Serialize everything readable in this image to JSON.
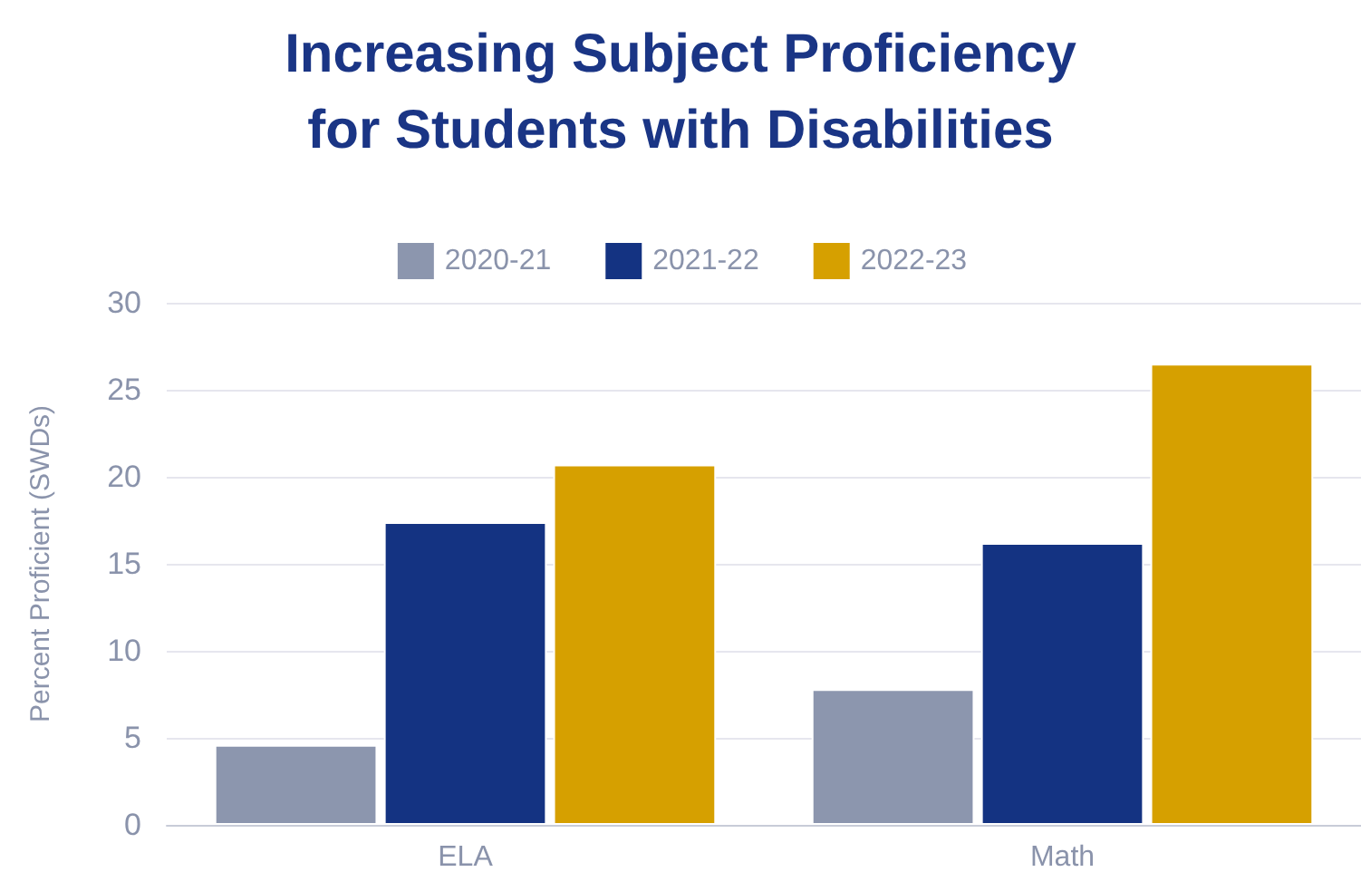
{
  "chart_data": {
    "type": "bar",
    "title": "Increasing Subject Proficiency\nfor Students with Disabilities",
    "ylabel": "Percent Proficient (SWDs)",
    "categories": [
      "ELA",
      "Math"
    ],
    "series": [
      {
        "name": "2020-21",
        "color": "#8c96ae",
        "values": [
          4.6,
          7.8
        ]
      },
      {
        "name": "2021-22",
        "color": "#143382",
        "values": [
          17.4,
          16.2
        ]
      },
      {
        "name": "2022-23",
        "color": "#d6a000",
        "values": [
          20.7,
          26.5
        ]
      }
    ],
    "ylim": [
      0,
      30
    ],
    "yticks": [
      0,
      5,
      10,
      15,
      20,
      25,
      30
    ],
    "grid": "y",
    "legend": "top"
  }
}
